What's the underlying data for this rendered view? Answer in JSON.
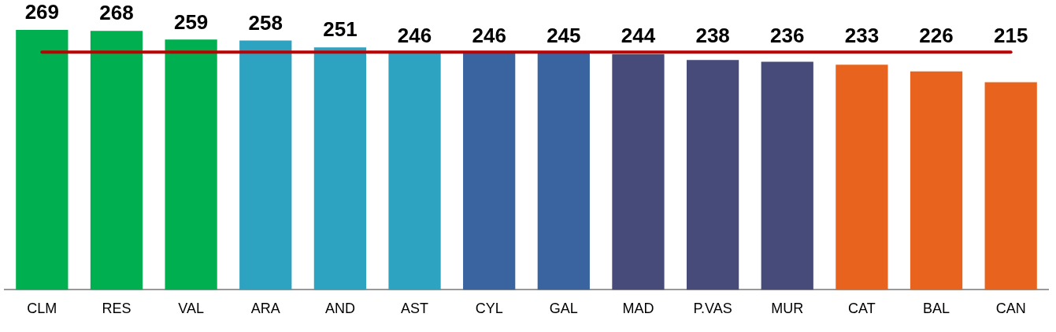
{
  "chart_data": {
    "type": "bar",
    "categories": [
      "CLM",
      "RES",
      "VAL",
      "ARA",
      "AND",
      "AST",
      "CYL",
      "GAL",
      "MAD",
      "P.VAS",
      "MUR",
      "CAT",
      "BAL",
      "CAN"
    ],
    "values": [
      269,
      268,
      259,
      258,
      251,
      246,
      246,
      245,
      244,
      238,
      236,
      233,
      226,
      215
    ],
    "colors": [
      "#00b050",
      "#00b050",
      "#00b050",
      "#2ea3c1",
      "#2ea3c1",
      "#2ea3c1",
      "#3a64a0",
      "#3a64a0",
      "#474b7a",
      "#474b7a",
      "#474b7a",
      "#e8641e",
      "#e8641e",
      "#e8641e"
    ],
    "data_labels": true,
    "tick_labels": "x",
    "grid": false,
    "legend": false,
    "ref_lines": [
      {
        "axis": "y",
        "value": 246,
        "color": "#c00000"
      }
    ]
  }
}
